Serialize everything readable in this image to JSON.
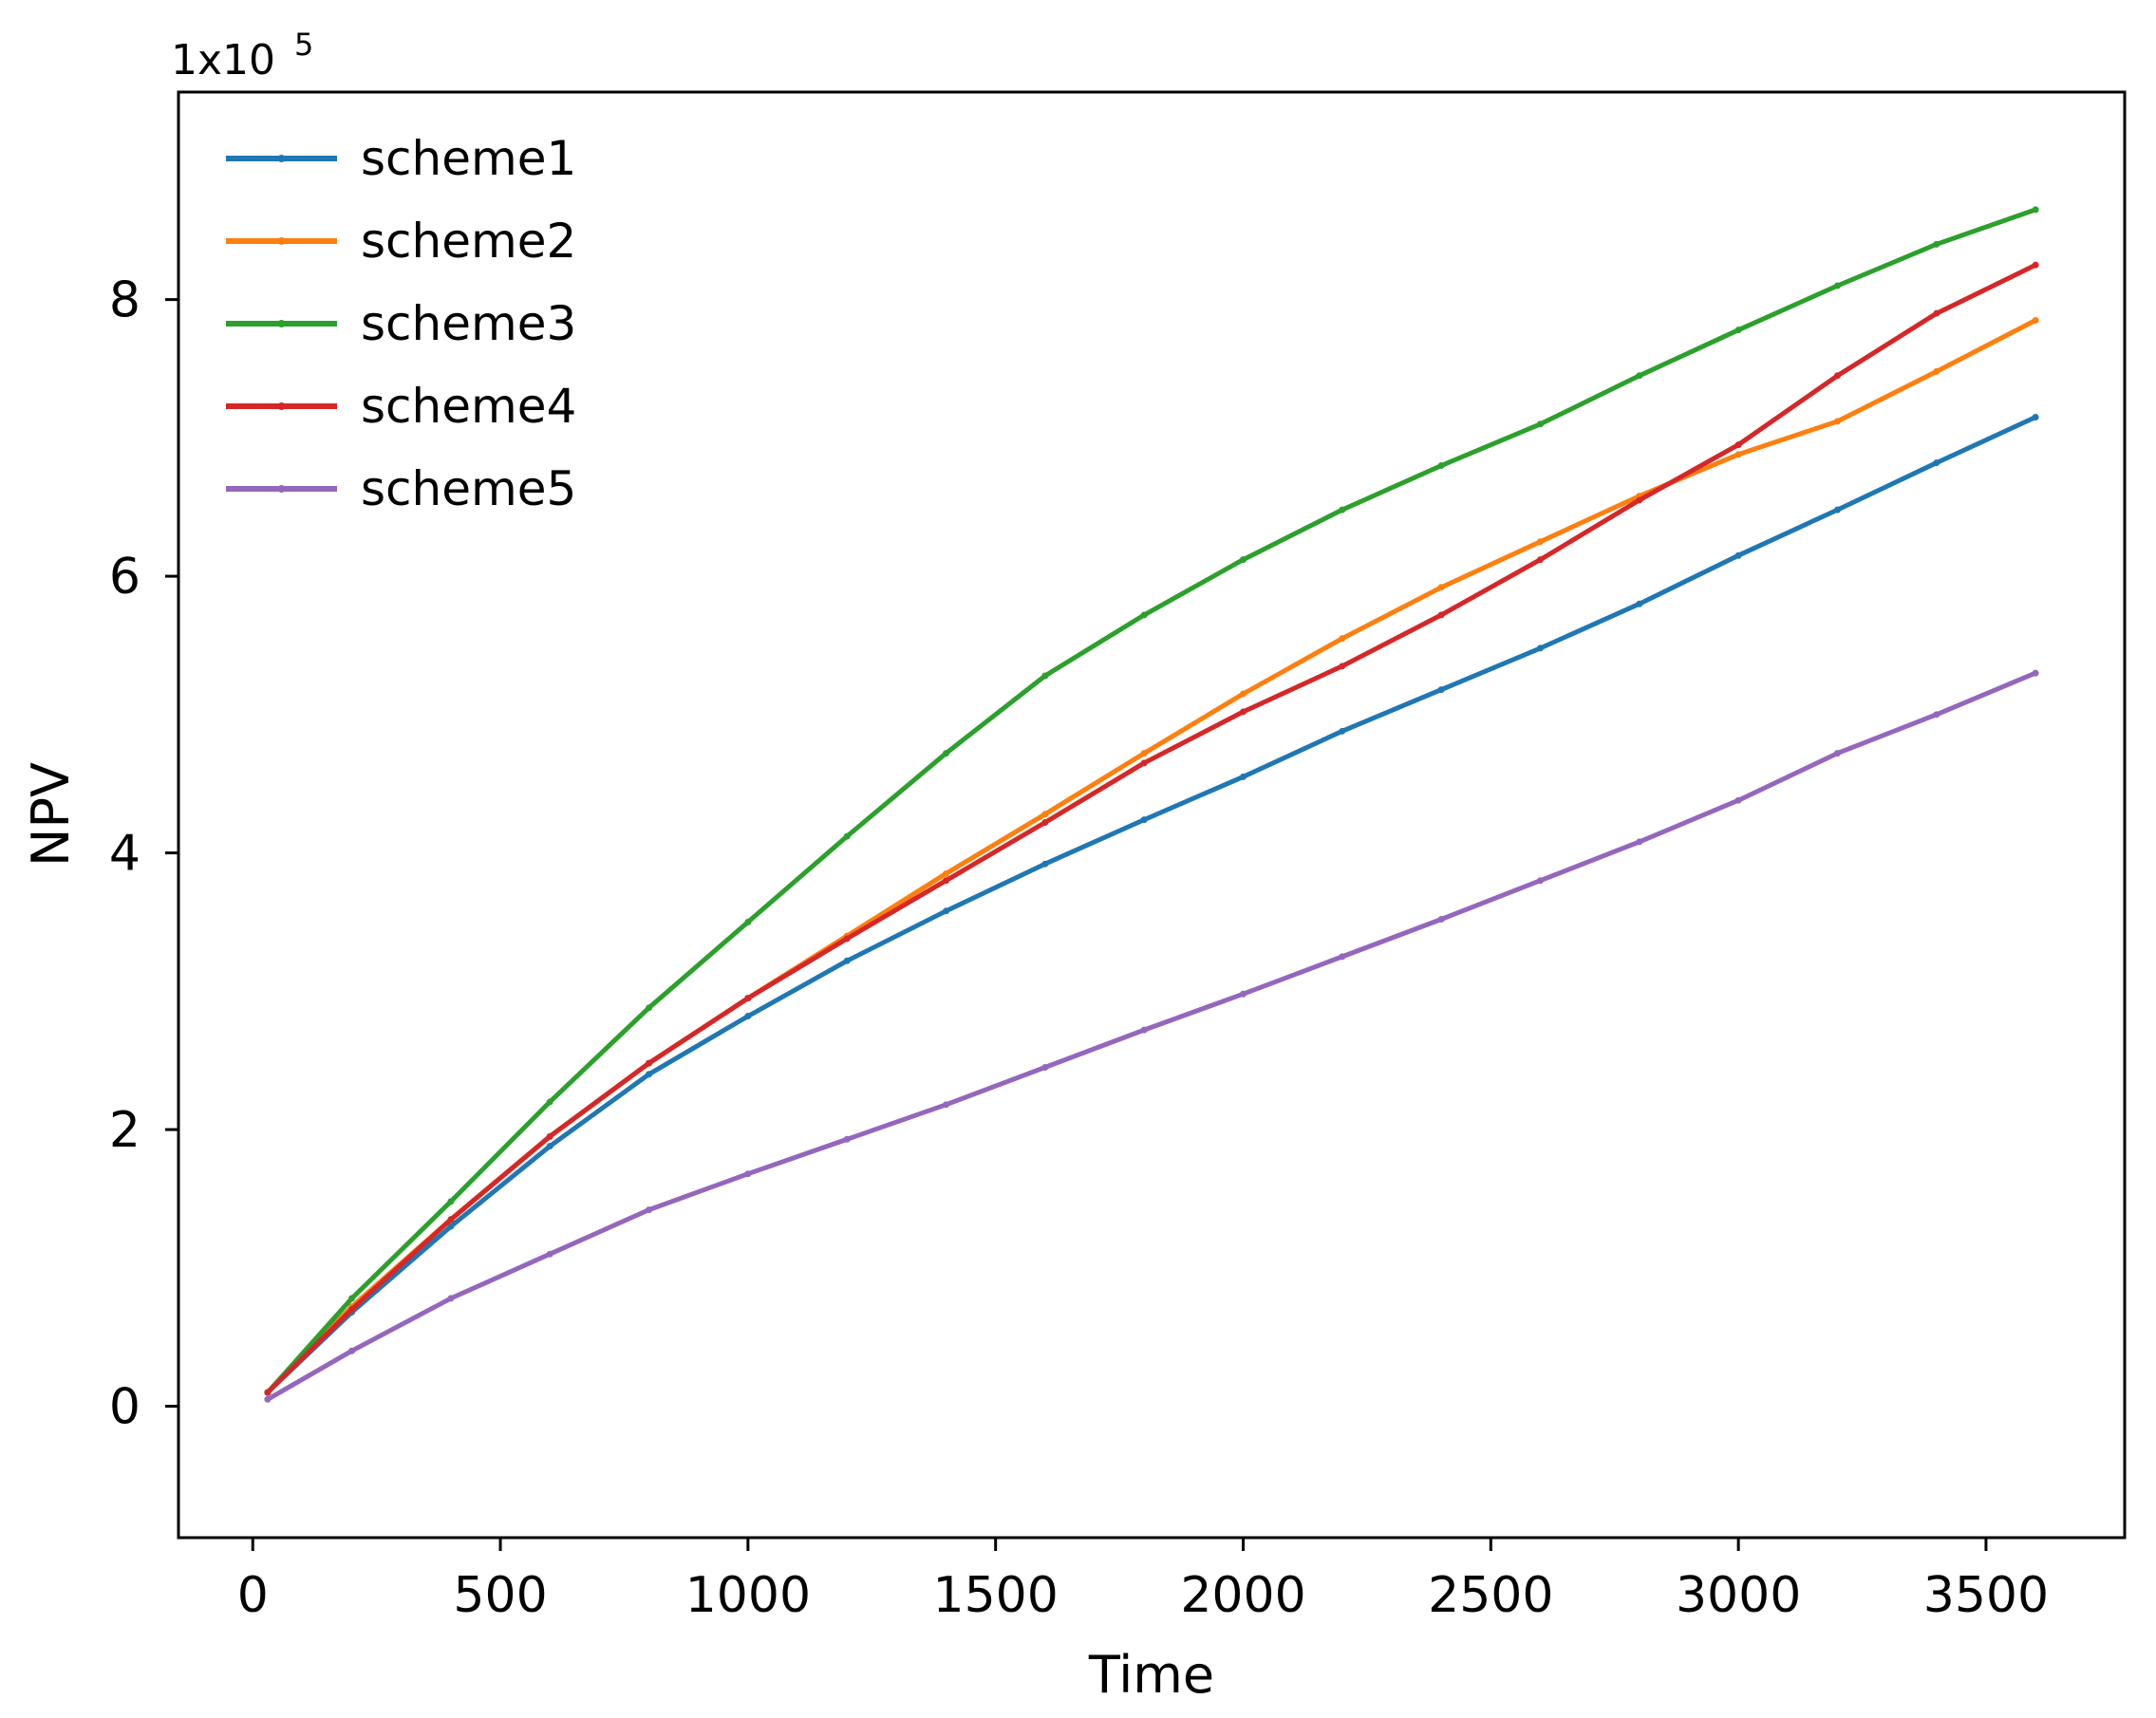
{
  "chart_data": {
    "type": "line",
    "title": "",
    "xlabel": "Time",
    "ylabel": "NPV",
    "y_multiplier": {
      "base": "1x10",
      "exponent": "5"
    },
    "xlim": [
      -150,
      3780
    ],
    "ylim": [
      -0.95,
      9.5
    ],
    "xticks": [
      0,
      500,
      1000,
      1500,
      2000,
      2500,
      3000,
      3500
    ],
    "yticks": [
      0,
      2,
      4,
      6,
      8
    ],
    "xtick_labels": [
      "0",
      "500",
      "1000",
      "1500",
      "2000",
      "2500",
      "3000",
      "3500"
    ],
    "ytick_labels": [
      "0",
      "2",
      "4",
      "6",
      "8"
    ],
    "grid": false,
    "legend_position": "top-left",
    "x": [
      30,
      200,
      400,
      600,
      800,
      1000,
      1200,
      1400,
      1600,
      1800,
      2000,
      2200,
      2400,
      2600,
      2800,
      3000,
      3200,
      3400,
      3600
    ],
    "series": [
      {
        "name": "scheme1",
        "color": "#1f77b4",
        "values": [
          0.1,
          0.68,
          1.3,
          1.88,
          2.4,
          2.82,
          3.22,
          3.58,
          3.92,
          4.24,
          4.55,
          4.88,
          5.18,
          5.48,
          5.8,
          6.15,
          6.48,
          6.82,
          7.15
        ]
      },
      {
        "name": "scheme2",
        "color": "#ff7f0e",
        "values": [
          0.1,
          0.72,
          1.35,
          1.95,
          2.48,
          2.95,
          3.4,
          3.85,
          4.28,
          4.72,
          5.15,
          5.55,
          5.92,
          6.25,
          6.58,
          6.88,
          7.12,
          7.48,
          7.85
        ]
      },
      {
        "name": "scheme3",
        "color": "#2ca02c",
        "values": [
          0.1,
          0.78,
          1.48,
          2.2,
          2.88,
          3.5,
          4.12,
          4.72,
          5.28,
          5.72,
          6.12,
          6.48,
          6.8,
          7.1,
          7.45,
          7.78,
          8.1,
          8.4,
          8.65
        ]
      },
      {
        "name": "scheme4",
        "color": "#d62728",
        "values": [
          0.1,
          0.7,
          1.35,
          1.95,
          2.48,
          2.95,
          3.38,
          3.8,
          4.22,
          4.65,
          5.02,
          5.35,
          5.72,
          6.12,
          6.55,
          6.95,
          7.45,
          7.9,
          8.25
        ]
      },
      {
        "name": "scheme5",
        "color": "#9467bd",
        "values": [
          0.05,
          0.4,
          0.78,
          1.1,
          1.42,
          1.68,
          1.93,
          2.18,
          2.45,
          2.72,
          2.98,
          3.25,
          3.52,
          3.8,
          4.08,
          4.38,
          4.72,
          5.0,
          5.3
        ]
      }
    ]
  }
}
